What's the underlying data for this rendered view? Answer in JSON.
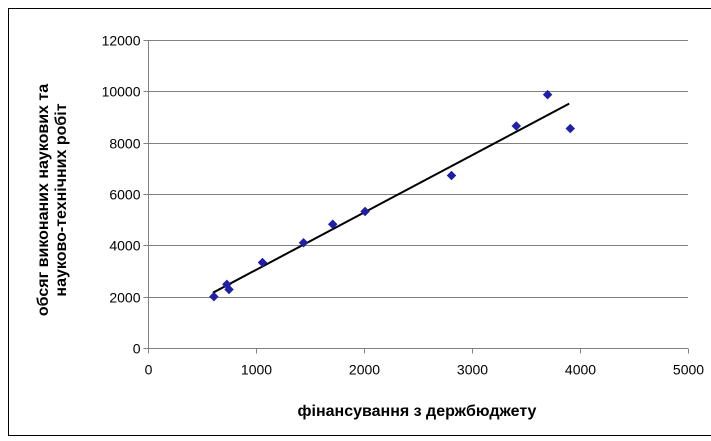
{
  "chart_data": {
    "type": "scatter",
    "xlabel": "фінансування з держбюджету",
    "ylabel_lines": [
      "обсяг виконаних наукових та",
      "науково-технічних робіт"
    ],
    "xlim": [
      0,
      5000
    ],
    "ylim": [
      0,
      12000
    ],
    "x_ticks": [
      0,
      1000,
      2000,
      3000,
      4000,
      5000
    ],
    "y_ticks": [
      0,
      2000,
      4000,
      6000,
      8000,
      10000,
      12000
    ],
    "grid": {
      "horizontal": true,
      "vertical": false
    },
    "legend": "none",
    "marker": "diamond",
    "points": [
      {
        "x": 610,
        "y": 2000
      },
      {
        "x": 730,
        "y": 2480
      },
      {
        "x": 750,
        "y": 2280
      },
      {
        "x": 1060,
        "y": 3330
      },
      {
        "x": 1440,
        "y": 4100
      },
      {
        "x": 1710,
        "y": 4820
      },
      {
        "x": 2010,
        "y": 5320
      },
      {
        "x": 2810,
        "y": 6720
      },
      {
        "x": 3410,
        "y": 8650
      },
      {
        "x": 3700,
        "y": 9870
      },
      {
        "x": 3910,
        "y": 8550
      }
    ],
    "trendline": {
      "type": "linear",
      "x_start": 600,
      "x_end": 3900,
      "y_start": 2150,
      "y_end": 9520
    },
    "colors": {
      "marker": "#1f1fa8",
      "trendline": "#000000",
      "grid": "#808080",
      "axis": "#808080",
      "border": "#000000",
      "background": "#ffffff"
    }
  }
}
